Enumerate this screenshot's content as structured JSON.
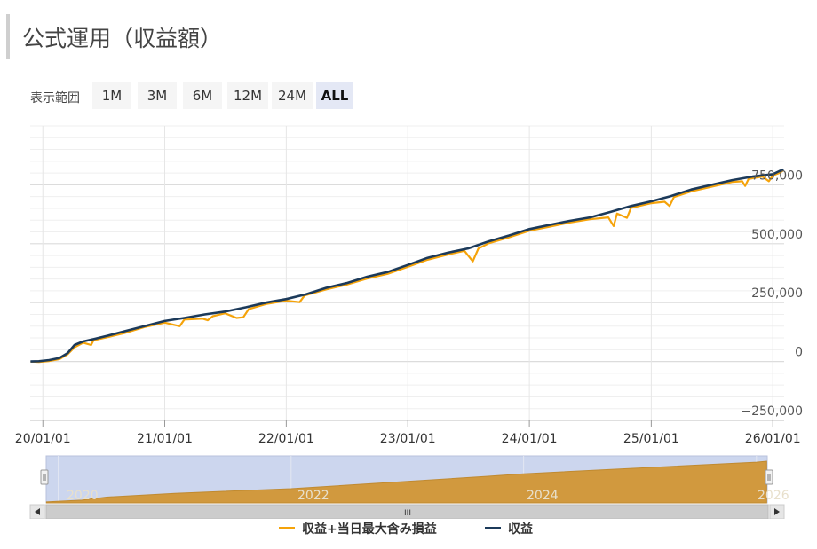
{
  "header": {
    "title": "公式運用（収益額）"
  },
  "range_selector": {
    "label": "表示範囲",
    "buttons": [
      "1M",
      "3M",
      "6M",
      "12M",
      "24M",
      "ALL"
    ],
    "active": "ALL"
  },
  "colors": {
    "series_profit_with_loss": "#f5a30a",
    "series_profit": "#1c3a5a",
    "navigator_fill": "#d1993e",
    "navigator_mask": "#ccd6ee",
    "grid": "#e6e6e6"
  },
  "chart_data": {
    "type": "line",
    "x_type": "datetime",
    "xlim": [
      "2019-11-24",
      "2026-02-04"
    ],
    "ylim": [
      -250000,
      1000000
    ],
    "y_ticks": [
      -250000,
      0,
      250000,
      500000,
      750000
    ],
    "y_tick_labels": [
      "−250,000",
      "0",
      "250,000",
      "500,000",
      "750,000"
    ],
    "x_ticks": [
      "2020-01-01",
      "2021-01-01",
      "2022-01-01",
      "2023-01-01",
      "2024-01-01",
      "2025-01-01",
      "2026-01-01"
    ],
    "x_tick_labels": [
      "20/01/01",
      "21/01/01",
      "22/01/01",
      "23/01/01",
      "24/01/01",
      "25/01/01",
      "26/01/01"
    ],
    "grid": true,
    "legend_position": "bottom-center",
    "series": [
      {
        "name": "収益",
        "color": "#1c3a5a",
        "points": [
          [
            "2019-11-25",
            0
          ],
          [
            "2019-12-20",
            1000
          ],
          [
            "2020-01-20",
            6000
          ],
          [
            "2020-02-20",
            15000
          ],
          [
            "2020-03-15",
            35000
          ],
          [
            "2020-04-05",
            70000
          ],
          [
            "2020-05-01",
            85000
          ],
          [
            "2020-06-01",
            95000
          ],
          [
            "2020-07-15",
            110000
          ],
          [
            "2020-09-01",
            128000
          ],
          [
            "2020-11-01",
            150000
          ],
          [
            "2021-01-01",
            172000
          ],
          [
            "2021-03-01",
            185000
          ],
          [
            "2021-05-01",
            200000
          ],
          [
            "2021-07-01",
            212000
          ],
          [
            "2021-09-01",
            230000
          ],
          [
            "2021-11-01",
            250000
          ],
          [
            "2022-01-01",
            265000
          ],
          [
            "2022-03-01",
            285000
          ],
          [
            "2022-05-01",
            313000
          ],
          [
            "2022-07-01",
            333000
          ],
          [
            "2022-09-01",
            360000
          ],
          [
            "2022-11-01",
            380000
          ],
          [
            "2023-01-01",
            410000
          ],
          [
            "2023-03-01",
            440000
          ],
          [
            "2023-05-01",
            462000
          ],
          [
            "2023-07-01",
            480000
          ],
          [
            "2023-09-01",
            510000
          ],
          [
            "2023-11-01",
            535000
          ],
          [
            "2024-01-01",
            562000
          ],
          [
            "2024-03-01",
            580000
          ],
          [
            "2024-05-01",
            597000
          ],
          [
            "2024-07-01",
            612000
          ],
          [
            "2024-09-01",
            635000
          ],
          [
            "2024-11-01",
            660000
          ],
          [
            "2025-01-01",
            680000
          ],
          [
            "2025-03-01",
            702000
          ],
          [
            "2025-05-01",
            730000
          ],
          [
            "2025-07-01",
            750000
          ],
          [
            "2025-09-01",
            770000
          ],
          [
            "2025-11-01",
            785000
          ],
          [
            "2026-01-01",
            795000
          ],
          [
            "2026-01-20",
            808000
          ],
          [
            "2026-02-02",
            815000
          ]
        ]
      },
      {
        "name": "収益+当日最大含み損益",
        "color": "#f5a30a",
        "points": [
          [
            "2019-11-25",
            0
          ],
          [
            "2019-12-20",
            -2000
          ],
          [
            "2020-01-20",
            2000
          ],
          [
            "2020-02-20",
            10000
          ],
          [
            "2020-03-15",
            30000
          ],
          [
            "2020-04-05",
            60000
          ],
          [
            "2020-05-01",
            80000
          ],
          [
            "2020-05-25",
            70000
          ],
          [
            "2020-06-01",
            90000
          ],
          [
            "2020-07-15",
            104000
          ],
          [
            "2020-09-01",
            120000
          ],
          [
            "2020-11-01",
            146000
          ],
          [
            "2021-01-01",
            165000
          ],
          [
            "2021-02-15",
            150000
          ],
          [
            "2021-03-01",
            178000
          ],
          [
            "2021-04-25",
            182000
          ],
          [
            "2021-05-10",
            175000
          ],
          [
            "2021-05-25",
            192000
          ],
          [
            "2021-07-01",
            205000
          ],
          [
            "2021-08-05",
            185000
          ],
          [
            "2021-08-25",
            188000
          ],
          [
            "2021-09-10",
            222000
          ],
          [
            "2021-11-01",
            244000
          ],
          [
            "2022-01-01",
            258000
          ],
          [
            "2022-02-10",
            252000
          ],
          [
            "2022-02-25",
            280000
          ],
          [
            "2022-05-01",
            306000
          ],
          [
            "2022-07-01",
            326000
          ],
          [
            "2022-09-01",
            352000
          ],
          [
            "2022-11-01",
            372000
          ],
          [
            "2023-01-01",
            402000
          ],
          [
            "2023-03-01",
            432000
          ],
          [
            "2023-05-01",
            454000
          ],
          [
            "2023-06-20",
            470000
          ],
          [
            "2023-07-01",
            450000
          ],
          [
            "2023-07-15",
            425000
          ],
          [
            "2023-08-01",
            480000
          ],
          [
            "2023-09-01",
            502000
          ],
          [
            "2023-11-01",
            527000
          ],
          [
            "2024-01-01",
            555000
          ],
          [
            "2024-03-01",
            572000
          ],
          [
            "2024-05-01",
            590000
          ],
          [
            "2024-07-01",
            604000
          ],
          [
            "2024-08-25",
            612000
          ],
          [
            "2024-09-10",
            575000
          ],
          [
            "2024-09-20",
            628000
          ],
          [
            "2024-10-20",
            610000
          ],
          [
            "2024-11-01",
            652000
          ],
          [
            "2025-01-01",
            672000
          ],
          [
            "2025-02-10",
            678000
          ],
          [
            "2025-02-25",
            660000
          ],
          [
            "2025-03-10",
            698000
          ],
          [
            "2025-05-01",
            722000
          ],
          [
            "2025-07-01",
            742000
          ],
          [
            "2025-09-01",
            762000
          ],
          [
            "2025-10-01",
            765000
          ],
          [
            "2025-10-10",
            745000
          ],
          [
            "2025-10-20",
            775000
          ],
          [
            "2025-12-01",
            785000
          ],
          [
            "2025-12-20",
            765000
          ],
          [
            "2026-01-01",
            790000
          ],
          [
            "2026-01-20",
            800000
          ],
          [
            "2026-02-02",
            812000
          ]
        ]
      }
    ]
  },
  "navigator": {
    "year_labels": [
      "2020",
      "2022",
      "2024",
      "2026"
    ],
    "series": {
      "points": [
        [
          "2019-11-25",
          0
        ],
        [
          "2020-03-15",
          35000
        ],
        [
          "2020-06-01",
          95000
        ],
        [
          "2021-01-01",
          172000
        ],
        [
          "2022-01-01",
          265000
        ],
        [
          "2023-01-01",
          410000
        ],
        [
          "2023-09-01",
          510000
        ],
        [
          "2024-01-01",
          562000
        ],
        [
          "2025-01-01",
          680000
        ],
        [
          "2026-01-01",
          795000
        ],
        [
          "2026-02-02",
          815000
        ]
      ]
    },
    "scrollbar_grip": "III"
  }
}
